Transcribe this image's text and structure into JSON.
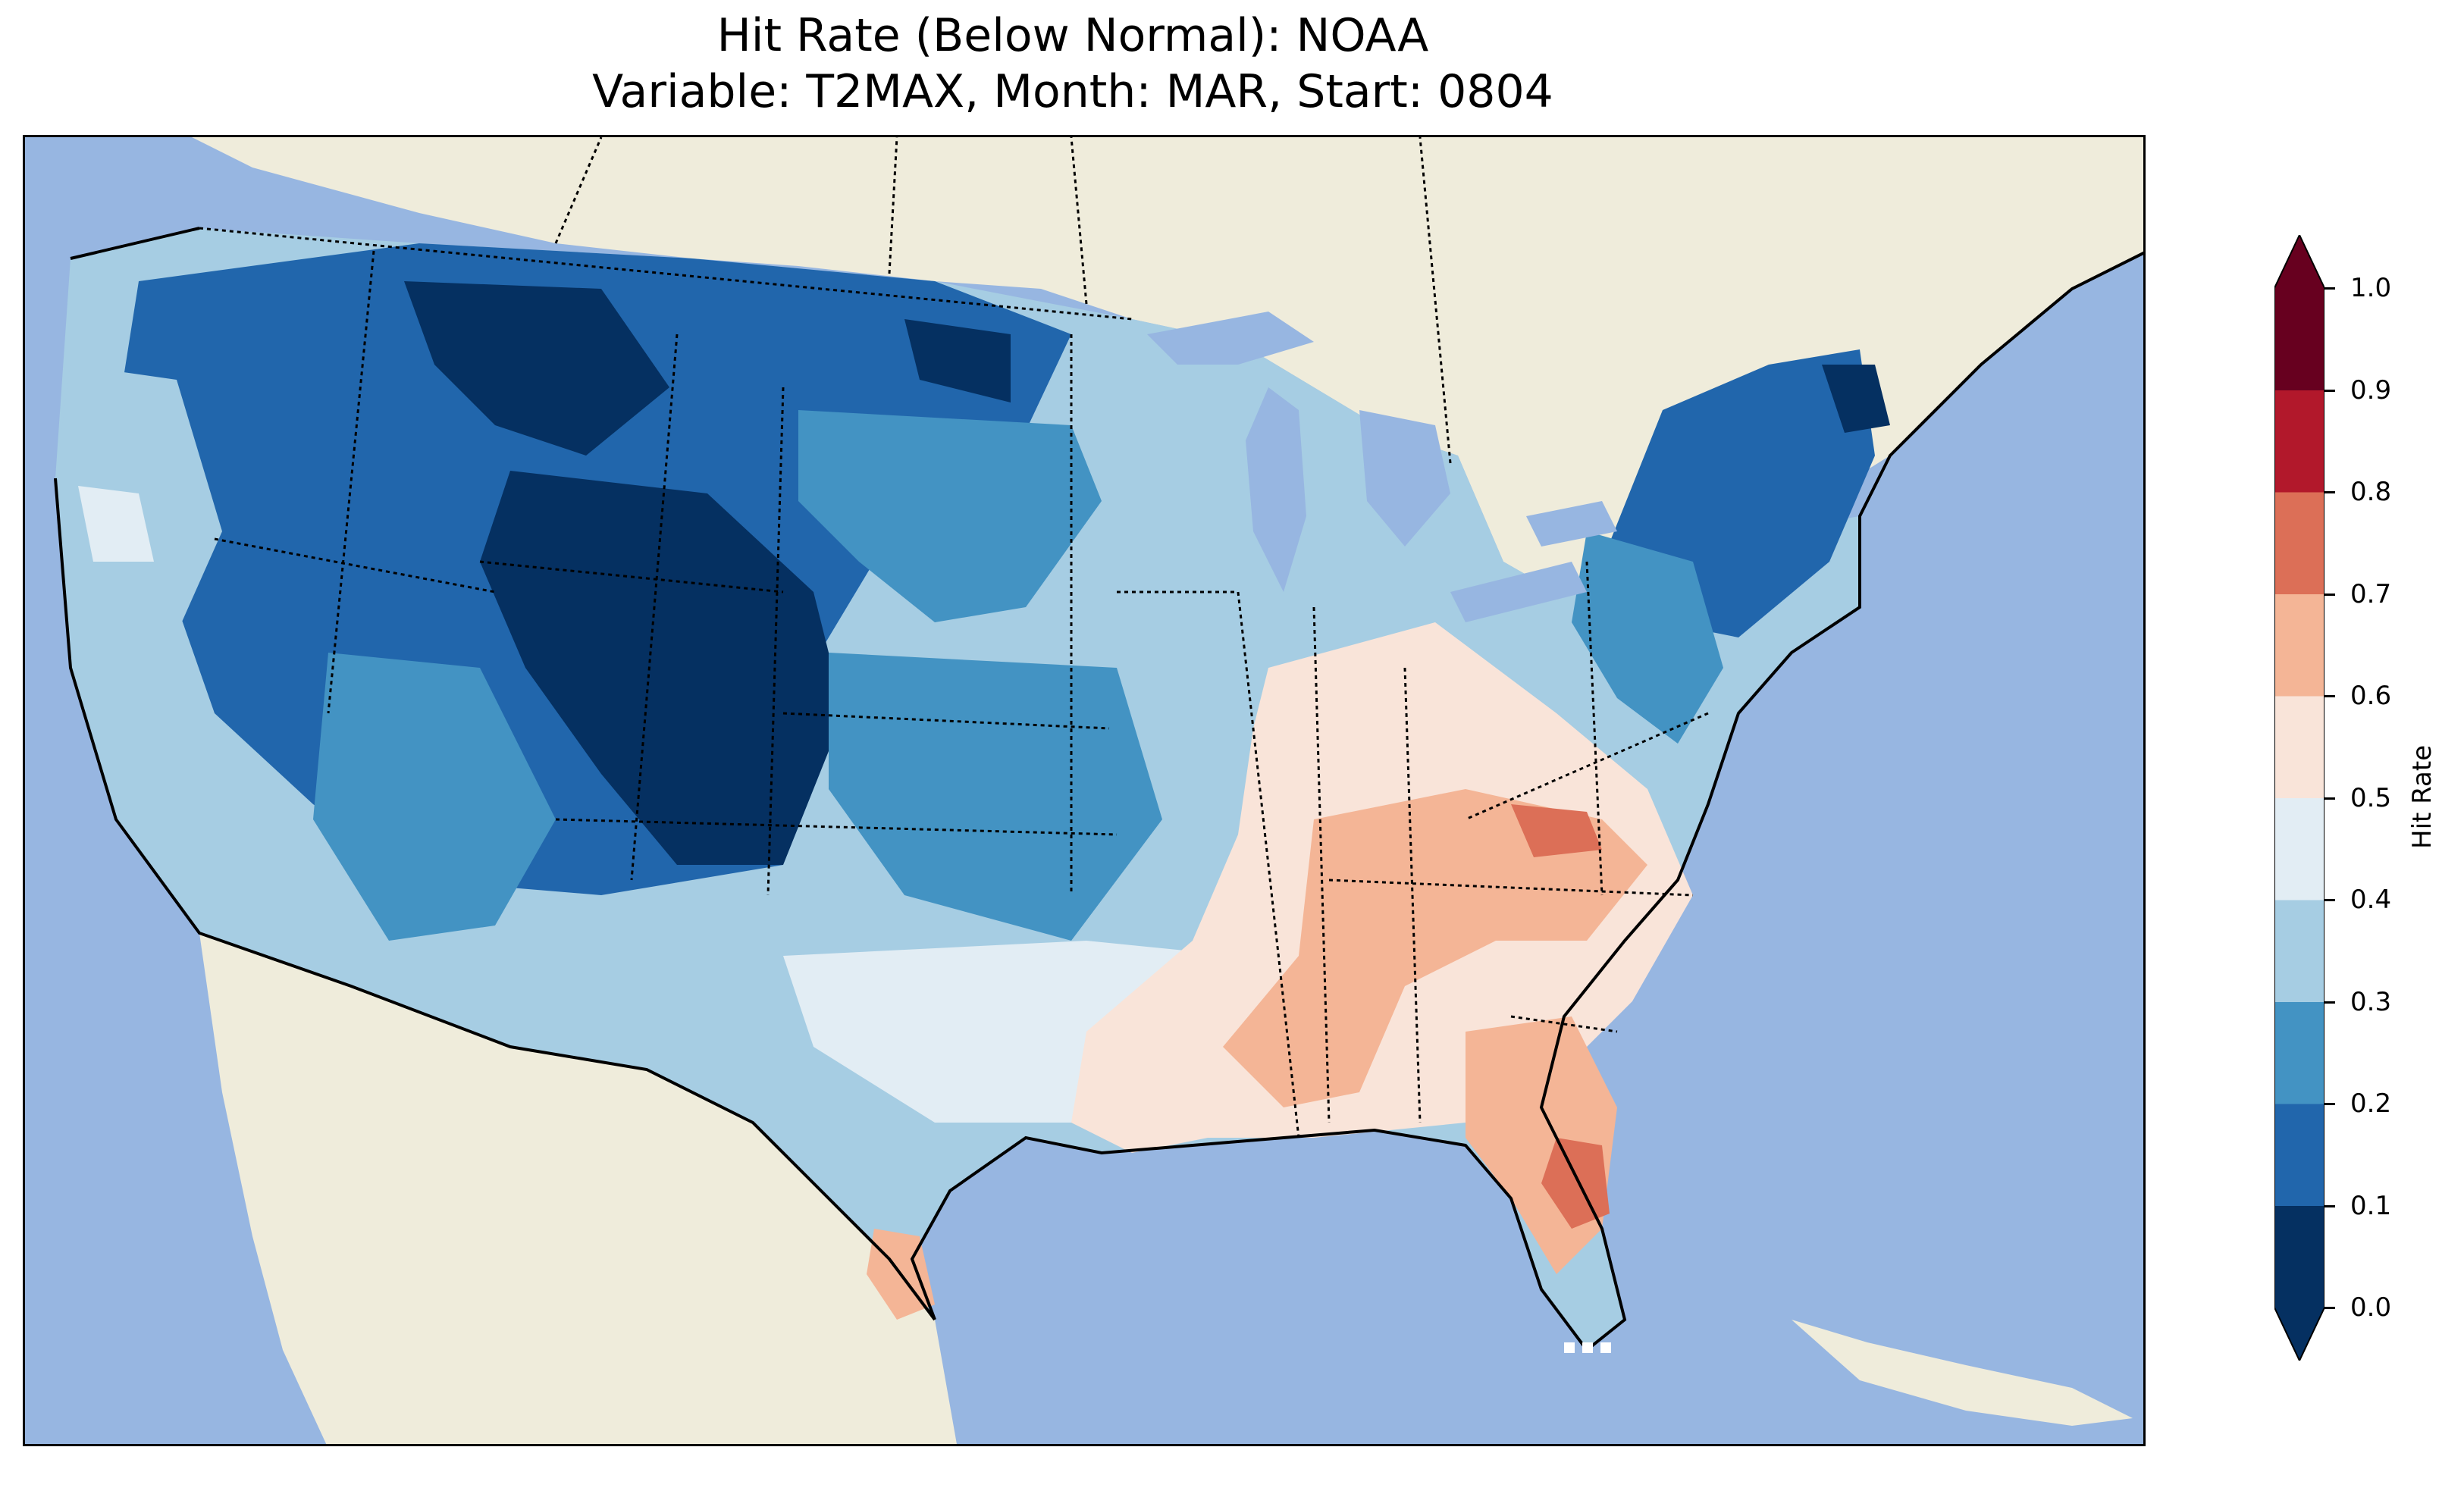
{
  "title": {
    "line1": "Hit Rate (Below Normal): NOAA",
    "line2": "Variable: T2MAX, Month: MAR, Start: 0804"
  },
  "map": {
    "region": "Contiguous United States",
    "ocean_color": "#97b6e1",
    "land_color": "#efecdb",
    "lake_color": "#97b6e1"
  },
  "colorbar": {
    "label": "Hit Rate",
    "ticks": [
      "0.0",
      "0.1",
      "0.2",
      "0.3",
      "0.4",
      "0.5",
      "0.6",
      "0.7",
      "0.8",
      "0.9",
      "1.0"
    ],
    "bins": [
      {
        "range": "0.0-0.1",
        "color": "#053061"
      },
      {
        "range": "0.1-0.2",
        "color": "#2166ac"
      },
      {
        "range": "0.2-0.3",
        "color": "#4393c3"
      },
      {
        "range": "0.3-0.4",
        "color": "#a6cde3"
      },
      {
        "range": "0.4-0.5",
        "color": "#e2edf4"
      },
      {
        "range": "0.5-0.6",
        "color": "#f9e4d9"
      },
      {
        "range": "0.6-0.7",
        "color": "#f4b596"
      },
      {
        "range": "0.7-0.8",
        "color": "#dc6f57"
      },
      {
        "range": "0.8-0.9",
        "color": "#b2182b"
      },
      {
        "range": "0.9-1.0",
        "color": "#67001f"
      }
    ],
    "extend": "both"
  },
  "regions": [
    {
      "name": "Pacific Northwest coast",
      "value_bin": "0.3-0.4"
    },
    {
      "name": "Northern Rockies / Montana",
      "value_bin": "0.0-0.1"
    },
    {
      "name": "Great Basin",
      "value_bin": "0.1-0.2"
    },
    {
      "name": "Colorado / Wyoming",
      "value_bin": "0.0-0.1"
    },
    {
      "name": "Southwest",
      "value_bin": "0.2-0.3"
    },
    {
      "name": "Northern Plains",
      "value_bin": "0.2-0.3"
    },
    {
      "name": "Upper Midwest",
      "value_bin": "0.3-0.4"
    },
    {
      "name": "Ohio Valley",
      "value_bin": "0.5-0.6"
    },
    {
      "name": "Tennessee Valley / Carolinas",
      "value_bin": "0.6-0.7"
    },
    {
      "name": "Southeast",
      "value_bin": "0.5-0.6"
    },
    {
      "name": "Central Florida",
      "value_bin": "0.7-0.8"
    },
    {
      "name": "South Texas",
      "value_bin": "0.6-0.7"
    },
    {
      "name": "Northeast",
      "value_bin": "0.1-0.2"
    },
    {
      "name": "Northern Maine",
      "value_bin": "0.0-0.1"
    }
  ]
}
